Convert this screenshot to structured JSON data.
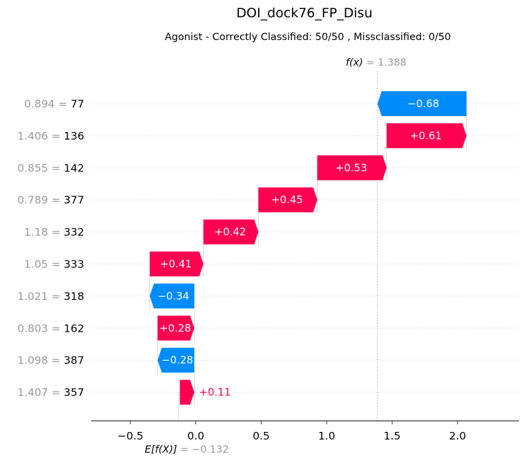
{
  "chart_data": {
    "type": "waterfall",
    "title": "DOI_dock76_FP_Disu",
    "subtitle": "Agonist - Correctly Classified: 50/50 , Missclassified: 0/50",
    "fx_label": "f(x)",
    "fx_value_text": "= 1.388",
    "fx_value": 1.388,
    "base_label": "E[f(X)]",
    "base_value_text": "= −0.132",
    "base_value": -0.132,
    "xlim": [
      -0.8,
      2.47
    ],
    "xticks": [
      -0.5,
      0.0,
      0.5,
      1.0,
      1.5,
      2.0
    ],
    "xtick_labels": [
      "−0.5",
      "0.0",
      "0.5",
      "1.0",
      "1.5",
      "2.0"
    ],
    "features": [
      {
        "value_label": "0.894",
        "name": "77",
        "contribution": -0.68,
        "text": "−0.68"
      },
      {
        "value_label": "1.406",
        "name": "136",
        "contribution": 0.61,
        "text": "+0.61"
      },
      {
        "value_label": "0.855",
        "name": "142",
        "contribution": 0.53,
        "text": "+0.53"
      },
      {
        "value_label": "0.789",
        "name": "377",
        "contribution": 0.45,
        "text": "+0.45"
      },
      {
        "value_label": "1.18",
        "name": "332",
        "contribution": 0.42,
        "text": "+0.42"
      },
      {
        "value_label": "1.05",
        "name": "333",
        "contribution": 0.41,
        "text": "+0.41"
      },
      {
        "value_label": "1.021",
        "name": "318",
        "contribution": -0.34,
        "text": "−0.34"
      },
      {
        "value_label": "0.803",
        "name": "162",
        "contribution": 0.28,
        "text": "+0.28"
      },
      {
        "value_label": "1.098",
        "name": "387",
        "contribution": -0.28,
        "text": "−0.28"
      },
      {
        "value_label": "1.407",
        "name": "357",
        "contribution": 0.11,
        "text": "+0.11"
      }
    ],
    "colors": {
      "positive": "#ff0051",
      "negative": "#008bfb",
      "label_gray": "#999999",
      "axis": "#333333"
    }
  }
}
